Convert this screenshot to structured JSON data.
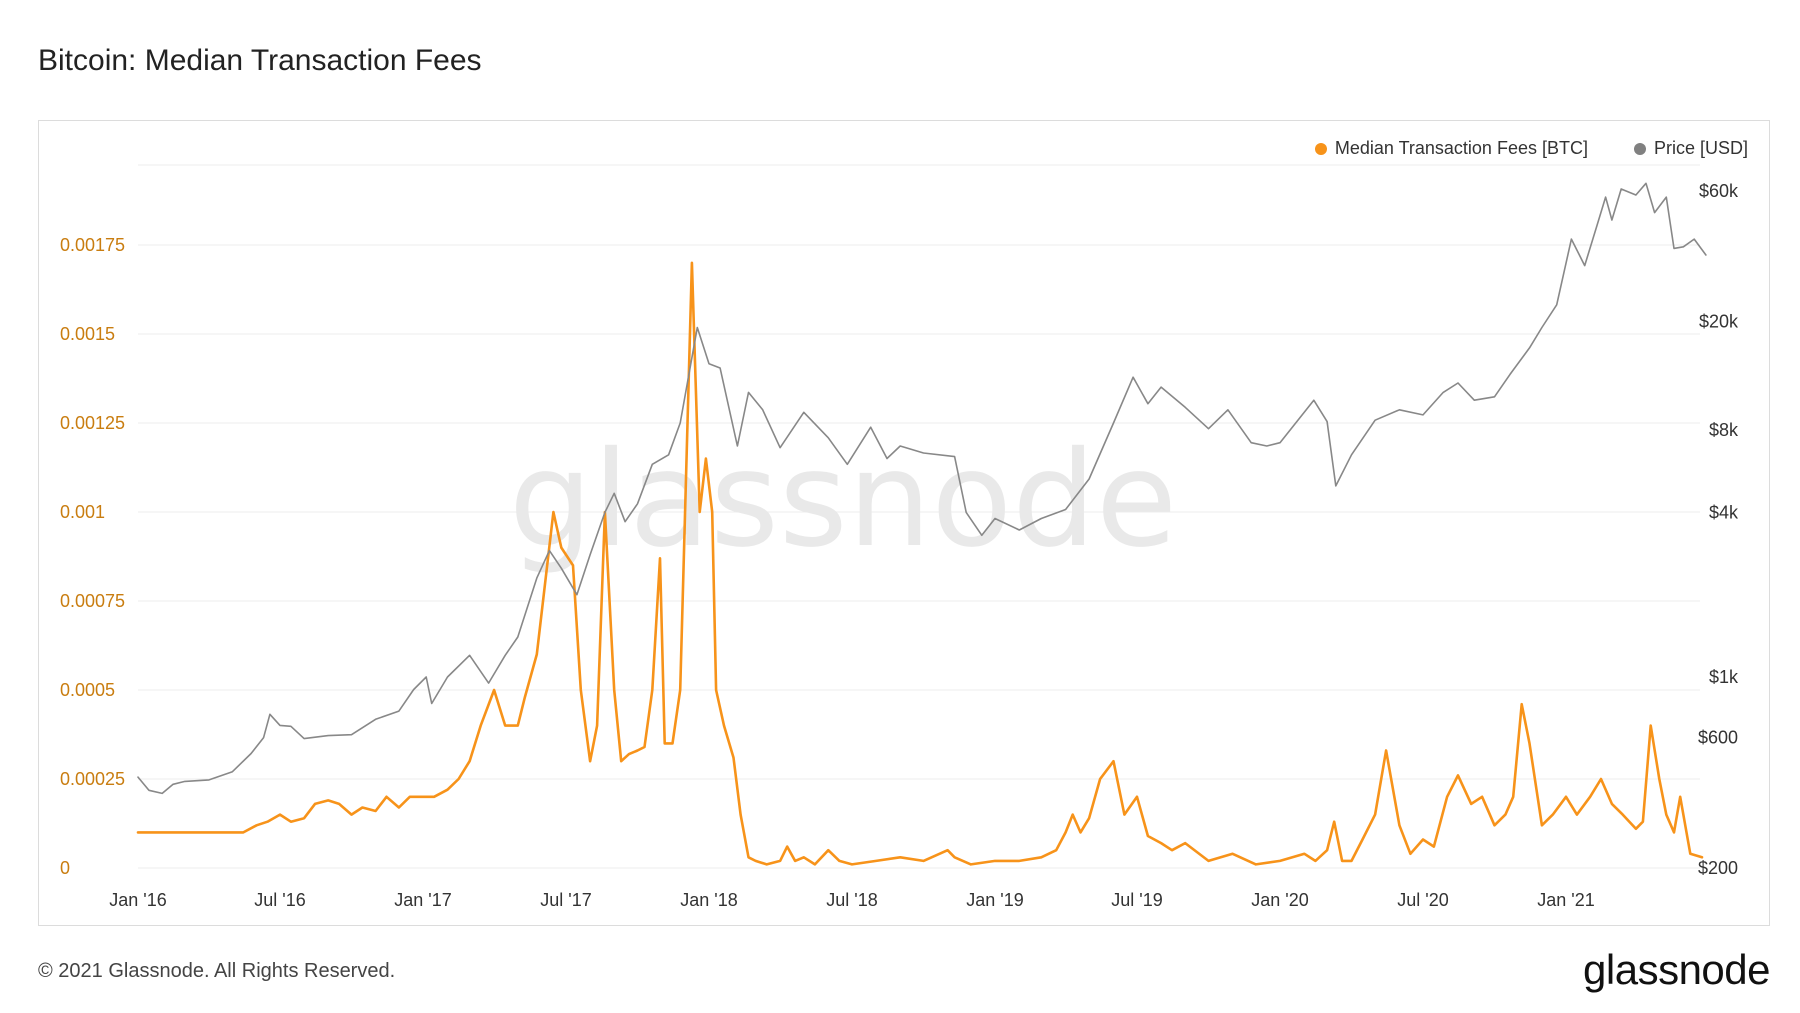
{
  "title": "Bitcoin: Median Transaction Fees",
  "footer": {
    "copyright": "© 2021 Glassnode. All Rights Reserved.",
    "brand": "glassnode"
  },
  "watermark": "glassnode",
  "colors": {
    "fees": "#f7931a",
    "price": "#888888",
    "fee_axis": "#c97d10",
    "grid": "#ececec"
  },
  "legend": [
    {
      "label": "Median Transaction Fees [BTC]",
      "color": "#f7931a"
    },
    {
      "label": "Price [USD]",
      "color": "#808080"
    }
  ],
  "chart_data": {
    "type": "line",
    "x_ticks": [
      "Jan '16",
      "Jul '16",
      "Jan '17",
      "Jul '17",
      "Jan '18",
      "Jul '18",
      "Jan '19",
      "Jul '19",
      "Jan '20",
      "Jul '20",
      "Jan '21"
    ],
    "y_left": {
      "ticks": [
        "0",
        "0.00025",
        "0.0005",
        "0.00075",
        "0.001",
        "0.00125",
        "0.0015",
        "0.00175"
      ],
      "range": [
        0,
        0.002
      ],
      "scale": "linear"
    },
    "y_right": {
      "ticks": [
        "$200",
        "$600",
        "$1k",
        "$4k",
        "$8k",
        "$20k",
        "$60k"
      ],
      "range": [
        200,
        70000
      ],
      "scale": "log"
    },
    "grid": true,
    "legend_position": "top-right",
    "series": [
      {
        "name": "Median Transaction Fees [BTC]",
        "axis": "left",
        "color": "#f7931a",
        "points": [
          [
            "2016-01-01",
            0.0001
          ],
          [
            "2016-03-01",
            0.0001
          ],
          [
            "2016-05-15",
            0.0001
          ],
          [
            "2016-06-01",
            0.00012
          ],
          [
            "2016-06-15",
            0.00013
          ],
          [
            "2016-07-01",
            0.00015
          ],
          [
            "2016-07-15",
            0.00013
          ],
          [
            "2016-08-01",
            0.00014
          ],
          [
            "2016-08-15",
            0.00018
          ],
          [
            "2016-09-01",
            0.00019
          ],
          [
            "2016-09-15",
            0.00018
          ],
          [
            "2016-10-01",
            0.00015
          ],
          [
            "2016-10-15",
            0.00017
          ],
          [
            "2016-11-01",
            0.00016
          ],
          [
            "2016-11-15",
            0.0002
          ],
          [
            "2016-12-01",
            0.00017
          ],
          [
            "2016-12-15",
            0.0002
          ],
          [
            "2017-01-01",
            0.0002
          ],
          [
            "2017-01-15",
            0.0002
          ],
          [
            "2017-02-01",
            0.00022
          ],
          [
            "2017-02-15",
            0.00025
          ],
          [
            "2017-03-01",
            0.0003
          ],
          [
            "2017-03-15",
            0.0004
          ],
          [
            "2017-04-01",
            0.0005
          ],
          [
            "2017-04-15",
            0.0004
          ],
          [
            "2017-05-01",
            0.0004
          ],
          [
            "2017-05-10",
            0.00048
          ],
          [
            "2017-05-25",
            0.0006
          ],
          [
            "2017-06-15",
            0.001
          ],
          [
            "2017-06-25",
            0.0009
          ],
          [
            "2017-07-10",
            0.00085
          ],
          [
            "2017-07-20",
            0.0005
          ],
          [
            "2017-08-01",
            0.0003
          ],
          [
            "2017-08-10",
            0.0004
          ],
          [
            "2017-08-20",
            0.001
          ],
          [
            "2017-09-01",
            0.0005
          ],
          [
            "2017-09-10",
            0.0003
          ],
          [
            "2017-09-20",
            0.00032
          ],
          [
            "2017-10-01",
            0.00033
          ],
          [
            "2017-10-10",
            0.00034
          ],
          [
            "2017-10-20",
            0.0005
          ],
          [
            "2017-10-30",
            0.00087
          ],
          [
            "2017-11-05",
            0.00035
          ],
          [
            "2017-11-15",
            0.00035
          ],
          [
            "2017-11-25",
            0.0005
          ],
          [
            "2017-12-10",
            0.0017
          ],
          [
            "2017-12-20",
            0.001
          ],
          [
            "2017-12-28",
            0.00115
          ],
          [
            "2018-01-05",
            0.001
          ],
          [
            "2018-01-10",
            0.0005
          ],
          [
            "2018-01-20",
            0.0004
          ],
          [
            "2018-02-01",
            0.00031
          ],
          [
            "2018-02-10",
            0.00015
          ],
          [
            "2018-02-20",
            3e-05
          ],
          [
            "2018-03-01",
            2e-05
          ],
          [
            "2018-03-15",
            1e-05
          ],
          [
            "2018-04-01",
            2e-05
          ],
          [
            "2018-04-10",
            6e-05
          ],
          [
            "2018-04-20",
            2e-05
          ],
          [
            "2018-05-01",
            3e-05
          ],
          [
            "2018-05-15",
            1e-05
          ],
          [
            "2018-06-01",
            5e-05
          ],
          [
            "2018-06-15",
            2e-05
          ],
          [
            "2018-07-01",
            1e-05
          ],
          [
            "2018-08-01",
            2e-05
          ],
          [
            "2018-09-01",
            3e-05
          ],
          [
            "2018-10-01",
            2e-05
          ],
          [
            "2018-11-01",
            5e-05
          ],
          [
            "2018-11-10",
            3e-05
          ],
          [
            "2018-12-01",
            1e-05
          ],
          [
            "2019-01-01",
            2e-05
          ],
          [
            "2019-02-01",
            2e-05
          ],
          [
            "2019-03-01",
            3e-05
          ],
          [
            "2019-03-20",
            5e-05
          ],
          [
            "2019-04-01",
            0.0001
          ],
          [
            "2019-04-10",
            0.00015
          ],
          [
            "2019-04-20",
            0.0001
          ],
          [
            "2019-05-01",
            0.00014
          ],
          [
            "2019-05-15",
            0.00025
          ],
          [
            "2019-06-01",
            0.0003
          ],
          [
            "2019-06-15",
            0.00015
          ],
          [
            "2019-07-01",
            0.0002
          ],
          [
            "2019-07-15",
            9e-05
          ],
          [
            "2019-08-01",
            7e-05
          ],
          [
            "2019-08-15",
            5e-05
          ],
          [
            "2019-09-01",
            7e-05
          ],
          [
            "2019-10-01",
            2e-05
          ],
          [
            "2019-11-01",
            4e-05
          ],
          [
            "2019-12-01",
            1e-05
          ],
          [
            "2020-01-01",
            2e-05
          ],
          [
            "2020-02-01",
            4e-05
          ],
          [
            "2020-02-15",
            2e-05
          ],
          [
            "2020-03-01",
            5e-05
          ],
          [
            "2020-03-10",
            0.00013
          ],
          [
            "2020-03-20",
            2e-05
          ],
          [
            "2020-04-01",
            2e-05
          ],
          [
            "2020-04-15",
            8e-05
          ],
          [
            "2020-05-01",
            0.00015
          ],
          [
            "2020-05-15",
            0.00033
          ],
          [
            "2020-06-01",
            0.00012
          ],
          [
            "2020-06-15",
            4e-05
          ],
          [
            "2020-07-01",
            8e-05
          ],
          [
            "2020-07-15",
            6e-05
          ],
          [
            "2020-08-01",
            0.0002
          ],
          [
            "2020-08-15",
            0.00026
          ],
          [
            "2020-09-01",
            0.00018
          ],
          [
            "2020-09-15",
            0.0002
          ],
          [
            "2020-10-01",
            0.00012
          ],
          [
            "2020-10-15",
            0.00015
          ],
          [
            "2020-10-25",
            0.0002
          ],
          [
            "2020-11-05",
            0.00046
          ],
          [
            "2020-11-15",
            0.00035
          ],
          [
            "2020-12-01",
            0.00012
          ],
          [
            "2020-12-15",
            0.00015
          ],
          [
            "2021-01-01",
            0.0002
          ],
          [
            "2021-01-15",
            0.00015
          ],
          [
            "2021-02-01",
            0.0002
          ],
          [
            "2021-02-15",
            0.00025
          ],
          [
            "2021-03-01",
            0.00018
          ],
          [
            "2021-03-15",
            0.00015
          ],
          [
            "2021-04-01",
            0.00011
          ],
          [
            "2021-04-10",
            0.00013
          ],
          [
            "2021-04-20",
            0.0004
          ],
          [
            "2021-05-01",
            0.00025
          ],
          [
            "2021-05-10",
            0.00015
          ],
          [
            "2021-05-20",
            0.0001
          ],
          [
            "2021-05-28",
            0.0002
          ],
          [
            "2021-06-10",
            4e-05
          ],
          [
            "2021-06-25",
            3e-05
          ]
        ]
      },
      {
        "name": "Price [USD]",
        "axis": "right",
        "color": "#888888",
        "points": [
          [
            "2016-01-01",
            430
          ],
          [
            "2016-01-15",
            385
          ],
          [
            "2016-02-01",
            375
          ],
          [
            "2016-02-15",
            405
          ],
          [
            "2016-03-01",
            415
          ],
          [
            "2016-04-01",
            420
          ],
          [
            "2016-05-01",
            450
          ],
          [
            "2016-05-25",
            525
          ],
          [
            "2016-06-10",
            600
          ],
          [
            "2016-06-18",
            730
          ],
          [
            "2016-07-01",
            665
          ],
          [
            "2016-07-15",
            660
          ],
          [
            "2016-08-01",
            595
          ],
          [
            "2016-09-01",
            610
          ],
          [
            "2016-10-01",
            615
          ],
          [
            "2016-11-01",
            700
          ],
          [
            "2016-12-01",
            750
          ],
          [
            "2016-12-20",
            900
          ],
          [
            "2017-01-05",
            1000
          ],
          [
            "2017-01-12",
            800
          ],
          [
            "2017-02-01",
            1000
          ],
          [
            "2017-03-01",
            1200
          ],
          [
            "2017-03-25",
            950
          ],
          [
            "2017-04-15",
            1200
          ],
          [
            "2017-05-01",
            1400
          ],
          [
            "2017-05-25",
            2300
          ],
          [
            "2017-06-10",
            2900
          ],
          [
            "2017-06-25",
            2500
          ],
          [
            "2017-07-15",
            2000
          ],
          [
            "2017-08-01",
            2800
          ],
          [
            "2017-08-20",
            4000
          ],
          [
            "2017-09-01",
            4700
          ],
          [
            "2017-09-15",
            3700
          ],
          [
            "2017-10-01",
            4300
          ],
          [
            "2017-10-20",
            6000
          ],
          [
            "2017-11-10",
            6500
          ],
          [
            "2017-11-25",
            8500
          ],
          [
            "2017-12-17",
            19000
          ],
          [
            "2018-01-01",
            14000
          ],
          [
            "2018-01-15",
            13500
          ],
          [
            "2018-02-06",
            7000
          ],
          [
            "2018-02-20",
            11000
          ],
          [
            "2018-03-10",
            9500
          ],
          [
            "2018-04-01",
            6900
          ],
          [
            "2018-05-01",
            9300
          ],
          [
            "2018-06-01",
            7500
          ],
          [
            "2018-06-25",
            6000
          ],
          [
            "2018-07-25",
            8200
          ],
          [
            "2018-08-15",
            6300
          ],
          [
            "2018-09-01",
            7000
          ],
          [
            "2018-10-01",
            6600
          ],
          [
            "2018-11-10",
            6400
          ],
          [
            "2018-11-25",
            4000
          ],
          [
            "2018-12-15",
            3300
          ],
          [
            "2019-01-01",
            3800
          ],
          [
            "2019-02-01",
            3450
          ],
          [
            "2019-03-01",
            3800
          ],
          [
            "2019-04-01",
            4100
          ],
          [
            "2019-05-01",
            5300
          ],
          [
            "2019-06-01",
            8500
          ],
          [
            "2019-06-26",
            12500
          ],
          [
            "2019-07-15",
            10000
          ],
          [
            "2019-08-01",
            11500
          ],
          [
            "2019-09-01",
            9700
          ],
          [
            "2019-10-01",
            8100
          ],
          [
            "2019-10-26",
            9500
          ],
          [
            "2019-11-25",
            7200
          ],
          [
            "2019-12-15",
            7000
          ],
          [
            "2020-01-01",
            7200
          ],
          [
            "2020-02-13",
            10300
          ],
          [
            "2020-03-01",
            8600
          ],
          [
            "2020-03-12",
            5000
          ],
          [
            "2020-04-01",
            6500
          ],
          [
            "2020-05-01",
            8700
          ],
          [
            "2020-06-01",
            9500
          ],
          [
            "2020-07-01",
            9100
          ],
          [
            "2020-07-27",
            11000
          ],
          [
            "2020-08-15",
            11900
          ],
          [
            "2020-09-05",
            10300
          ],
          [
            "2020-10-01",
            10600
          ],
          [
            "2020-10-21",
            12800
          ],
          [
            "2020-11-15",
            16000
          ],
          [
            "2020-12-01",
            19000
          ],
          [
            "2020-12-20",
            23000
          ],
          [
            "2021-01-08",
            40000
          ],
          [
            "2021-01-25",
            32000
          ],
          [
            "2021-02-10",
            45000
          ],
          [
            "2021-02-21",
            57000
          ],
          [
            "2021-03-01",
            47000
          ],
          [
            "2021-03-13",
            61000
          ],
          [
            "2021-04-01",
            58000
          ],
          [
            "2021-04-14",
            64000
          ],
          [
            "2021-04-25",
            50000
          ],
          [
            "2021-05-10",
            57000
          ],
          [
            "2021-05-20",
            37000
          ],
          [
            "2021-06-01",
            37500
          ],
          [
            "2021-06-15",
            40000
          ],
          [
            "2021-06-30",
            35000
          ]
        ]
      }
    ]
  }
}
